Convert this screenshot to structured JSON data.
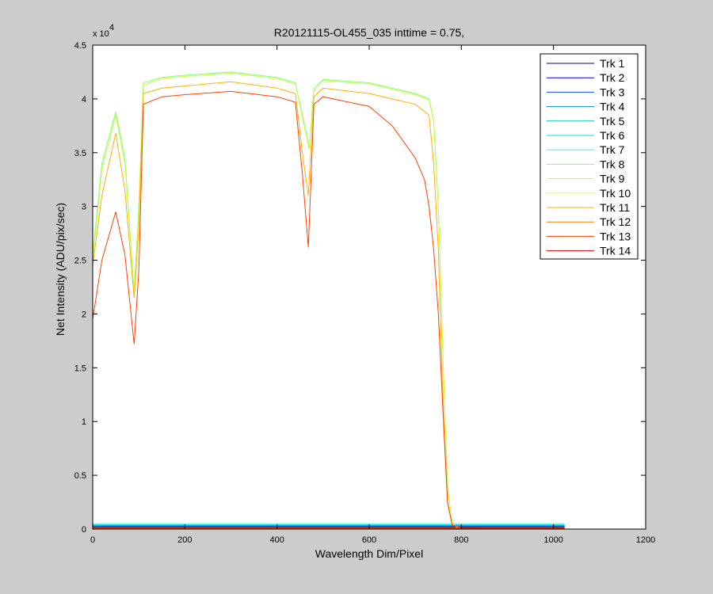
{
  "chart_data": {
    "type": "line",
    "title": "R20121115-OL455_035 inttime = 0.75,",
    "xlabel": "Wavelength Dim/Pixel",
    "ylabel": "Net Intensity (ADU/pix/sec)",
    "y_exponent_label": "x 10",
    "y_exponent": "4",
    "xlim": [
      0,
      1200
    ],
    "ylim": [
      0,
      45000
    ],
    "x_ticks": [
      0,
      200,
      400,
      600,
      800,
      1000,
      1200
    ],
    "y_ticks": [
      0,
      5000,
      10000,
      15000,
      20000,
      25000,
      30000,
      35000,
      40000,
      45000
    ],
    "x_tick_labels": [
      "0",
      "200",
      "400",
      "600",
      "800",
      "1000",
      "1200"
    ],
    "y_tick_labels": [
      "0",
      "0.5",
      "1",
      "1.5",
      "2",
      "2.5",
      "3",
      "3.5",
      "4",
      "4.5"
    ],
    "grid": false,
    "legend_position": "top-right",
    "series": [
      {
        "name": "Trk 1",
        "color": "#00008f",
        "x": [
          0,
          1024
        ],
        "y": [
          150,
          150
        ]
      },
      {
        "name": "Trk 2",
        "color": "#0000ff",
        "x": [
          0,
          1024
        ],
        "y": [
          200,
          200
        ]
      },
      {
        "name": "Trk 3",
        "color": "#0050ff",
        "x": [
          0,
          1024
        ],
        "y": [
          250,
          250
        ]
      },
      {
        "name": "Trk 4",
        "color": "#0090cc",
        "x": [
          0,
          1024
        ],
        "y": [
          300,
          300
        ]
      },
      {
        "name": "Trk 5",
        "color": "#00c0c0",
        "x": [
          0,
          1024
        ],
        "y": [
          350,
          350
        ]
      },
      {
        "name": "Trk 6",
        "color": "#00e0e0",
        "x": [
          0,
          1024
        ],
        "y": [
          400,
          400
        ]
      },
      {
        "name": "Trk 7",
        "color": "#20ffff",
        "x": [
          0,
          1024
        ],
        "y": [
          500,
          500
        ]
      },
      {
        "name": "Trk 8",
        "color": "#80ff80",
        "x": [
          0,
          20,
          50,
          70,
          90,
          100,
          110,
          150,
          200,
          300,
          400,
          440,
          460,
          470,
          480,
          500,
          600,
          700,
          730,
          740,
          750,
          760,
          770,
          780,
          790,
          800,
          850,
          1024
        ],
        "y": [
          25500,
          34000,
          38800,
          34500,
          22000,
          30000,
          41500,
          42000,
          42200,
          42500,
          42000,
          41500,
          37500,
          35500,
          41000,
          41800,
          41500,
          40500,
          40000,
          38000,
          30000,
          16000,
          4000,
          600,
          200,
          100,
          100,
          100
        ]
      },
      {
        "name": "Trk 9",
        "color": "#c0ff40",
        "x": [
          0,
          20,
          50,
          70,
          90,
          100,
          110,
          150,
          200,
          300,
          400,
          440,
          460,
          470,
          480,
          500,
          600,
          700,
          730,
          740,
          750,
          760,
          770,
          780,
          790,
          800,
          850,
          1024
        ],
        "y": [
          25000,
          33500,
          38500,
          34000,
          21800,
          29800,
          41300,
          41900,
          42100,
          42400,
          41900,
          41400,
          37300,
          35300,
          40800,
          41700,
          41400,
          40400,
          39900,
          37900,
          29900,
          15800,
          3900,
          550,
          180,
          90,
          90,
          90
        ]
      },
      {
        "name": "Trk 10",
        "color": "#ffff00",
        "x": [
          0,
          1024
        ],
        "y": [
          120,
          120
        ]
      },
      {
        "name": "Trk 11",
        "color": "#ffb000",
        "x": [
          0,
          20,
          50,
          70,
          90,
          100,
          110,
          150,
          200,
          300,
          400,
          440,
          455,
          468,
          480,
          500,
          600,
          700,
          730,
          740,
          750,
          760,
          770,
          780,
          800,
          850,
          1024
        ],
        "y": [
          24500,
          31000,
          36800,
          31500,
          21500,
          28000,
          40500,
          41000,
          41200,
          41600,
          41000,
          40500,
          35000,
          31000,
          40200,
          41000,
          40500,
          39500,
          38500,
          34000,
          26000,
          12000,
          2500,
          400,
          100,
          80,
          80
        ]
      },
      {
        "name": "Trk 12",
        "color": "#ff8000",
        "x": [
          0,
          1024
        ],
        "y": [
          100,
          100
        ]
      },
      {
        "name": "Trk 13",
        "color": "#ff4000",
        "x": [
          0,
          20,
          50,
          70,
          90,
          100,
          110,
          150,
          200,
          300,
          400,
          440,
          455,
          468,
          480,
          500,
          600,
          650,
          700,
          720,
          730,
          740,
          750,
          760,
          770,
          780,
          800,
          850,
          1024
        ],
        "y": [
          19500,
          25000,
          29500,
          25500,
          17200,
          24000,
          39500,
          40200,
          40400,
          40700,
          40200,
          39700,
          33000,
          26200,
          39500,
          40200,
          39300,
          37500,
          34500,
          32500,
          30000,
          26000,
          20000,
          11000,
          2500,
          400,
          100,
          80,
          80
        ]
      },
      {
        "name": "Trk 14",
        "color": "#e00000",
        "x": [
          0,
          1024
        ],
        "y": [
          80,
          80
        ]
      }
    ]
  }
}
